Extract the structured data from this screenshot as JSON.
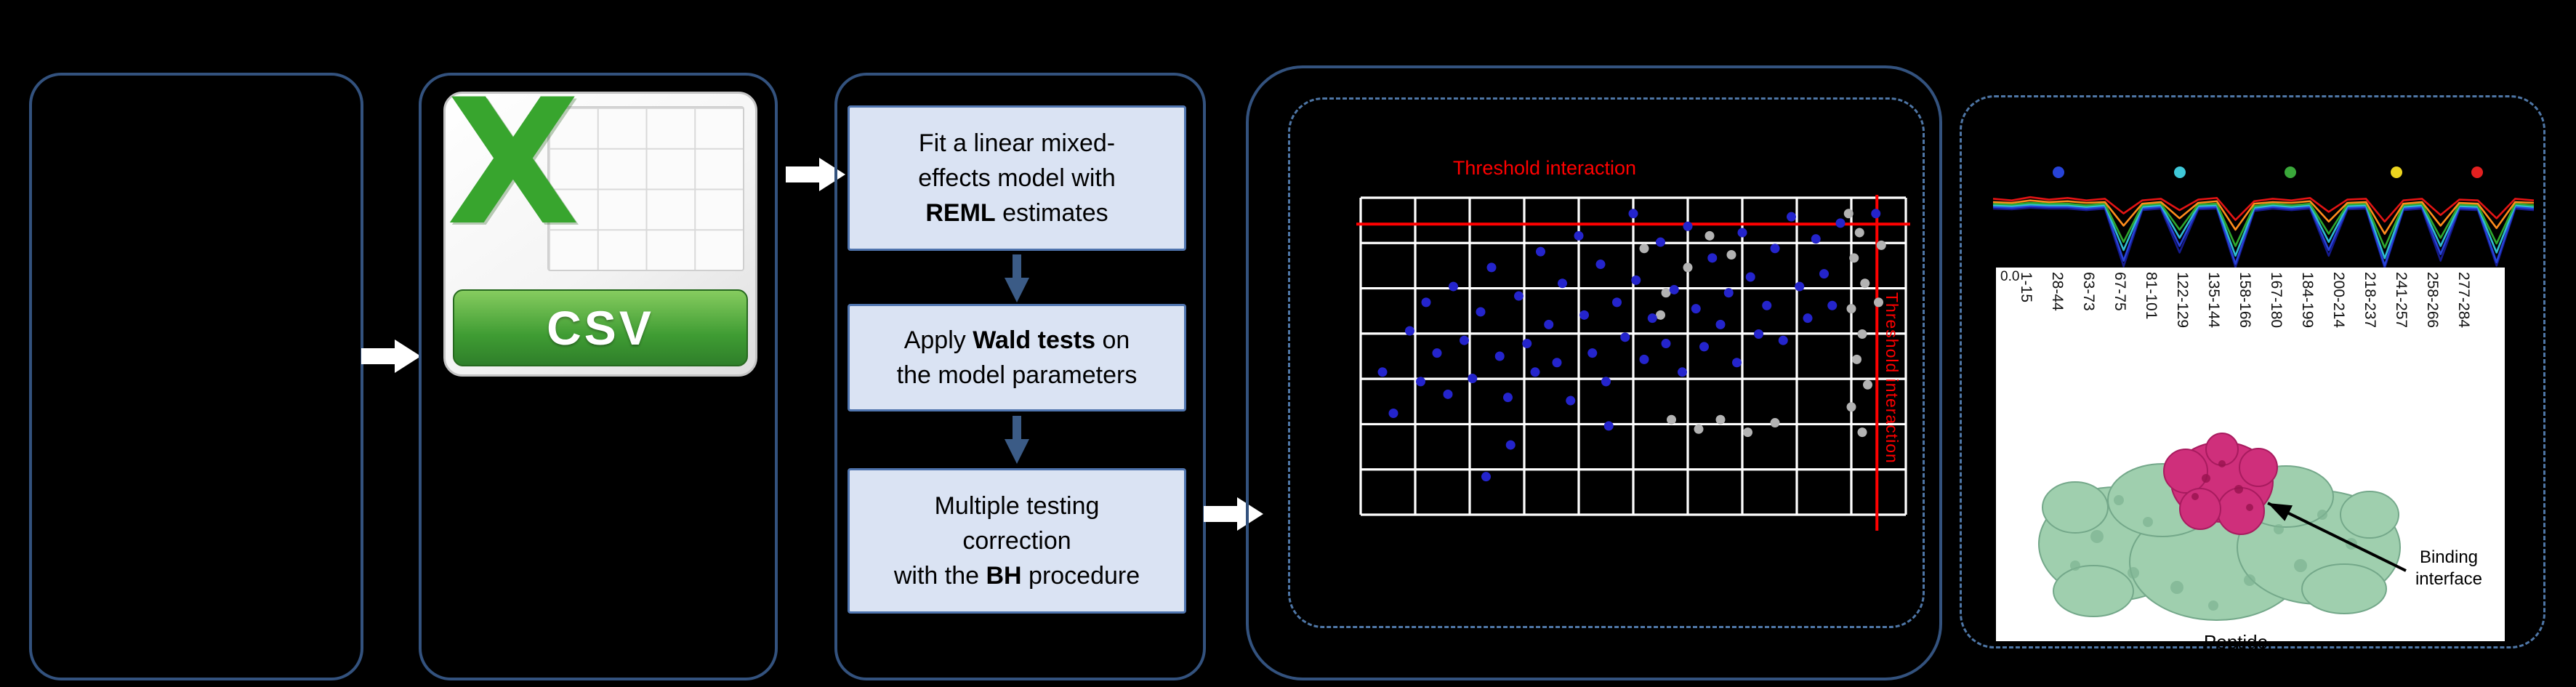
{
  "icons": {
    "flow_arrow_right": "block-arrow-right",
    "flow_arrow_down": "block-arrow-down",
    "csv_file": "excel-csv-file"
  },
  "colors": {
    "box_border": "#33527e",
    "dashed_border": "#4e76a6",
    "step_fill": "#dae3f3",
    "step_border": "#4f74ae",
    "threshold_red": "#ff0000",
    "significant_point": "#2424cc",
    "nonsignificant_point": "#b3b3b3",
    "csv_green": "#38a52e",
    "protein_green": "#9fcfae",
    "binding_magenta": "#cf2f7b"
  },
  "pipeline": {
    "csv": {
      "x_letter": "X",
      "label": "CSV"
    },
    "steps": [
      {
        "pre": "Fit a linear mixed-\neffects model with\n",
        "bold": "REML",
        "post": " estimates"
      },
      {
        "pre": "Apply ",
        "bold": "Wald tests",
        "post": " on\nthe model parameters"
      },
      {
        "pre": "Multiple testing\ncorrection\nwith the ",
        "bold": "BH",
        "post": " procedure"
      }
    ]
  },
  "volcano": {
    "title": "Threshold interaction",
    "side_label": "Threshold interaction",
    "grid": {
      "cols": 10,
      "rows": 7
    },
    "threshold_h": 0.083,
    "threshold_v": 0.947,
    "point_colors": {
      "significant": "#2424cc",
      "ns": "#b3b3b3"
    },
    "blue_points": [
      [
        0.04,
        0.55
      ],
      [
        0.06,
        0.68
      ],
      [
        0.09,
        0.42
      ],
      [
        0.11,
        0.58
      ],
      [
        0.12,
        0.33
      ],
      [
        0.14,
        0.49
      ],
      [
        0.16,
        0.62
      ],
      [
        0.17,
        0.28
      ],
      [
        0.19,
        0.45
      ],
      [
        0.205,
        0.57
      ],
      [
        0.22,
        0.36
      ],
      [
        0.23,
        0.88
      ],
      [
        0.24,
        0.22
      ],
      [
        0.255,
        0.5
      ],
      [
        0.27,
        0.63
      ],
      [
        0.275,
        0.78
      ],
      [
        0.29,
        0.31
      ],
      [
        0.305,
        0.46
      ],
      [
        0.32,
        0.55
      ],
      [
        0.33,
        0.17
      ],
      [
        0.345,
        0.4
      ],
      [
        0.36,
        0.52
      ],
      [
        0.37,
        0.27
      ],
      [
        0.385,
        0.64
      ],
      [
        0.4,
        0.12
      ],
      [
        0.41,
        0.37
      ],
      [
        0.425,
        0.49
      ],
      [
        0.44,
        0.21
      ],
      [
        0.45,
        0.58
      ],
      [
        0.455,
        0.72
      ],
      [
        0.47,
        0.33
      ],
      [
        0.485,
        0.44
      ],
      [
        0.5,
        0.05
      ],
      [
        0.505,
        0.26
      ],
      [
        0.52,
        0.51
      ],
      [
        0.535,
        0.38
      ],
      [
        0.55,
        0.14
      ],
      [
        0.56,
        0.46
      ],
      [
        0.575,
        0.29
      ],
      [
        0.59,
        0.55
      ],
      [
        0.6,
        0.09
      ],
      [
        0.615,
        0.35
      ],
      [
        0.63,
        0.47
      ],
      [
        0.645,
        0.19
      ],
      [
        0.66,
        0.4
      ],
      [
        0.675,
        0.3
      ],
      [
        0.69,
        0.52
      ],
      [
        0.7,
        0.11
      ],
      [
        0.715,
        0.25
      ],
      [
        0.73,
        0.43
      ],
      [
        0.745,
        0.34
      ],
      [
        0.76,
        0.16
      ],
      [
        0.775,
        0.45
      ],
      [
        0.79,
        0.06
      ],
      [
        0.805,
        0.28
      ],
      [
        0.82,
        0.38
      ],
      [
        0.835,
        0.13
      ],
      [
        0.85,
        0.24
      ],
      [
        0.865,
        0.34
      ],
      [
        0.88,
        0.08
      ],
      [
        0.945,
        0.05
      ]
    ],
    "gray_points": [
      [
        0.52,
        0.16
      ],
      [
        0.56,
        0.3
      ],
      [
        0.6,
        0.22
      ],
      [
        0.55,
        0.37
      ],
      [
        0.64,
        0.12
      ],
      [
        0.68,
        0.18
      ],
      [
        0.57,
        0.7
      ],
      [
        0.62,
        0.73
      ],
      [
        0.66,
        0.7
      ],
      [
        0.71,
        0.74
      ],
      [
        0.76,
        0.71
      ],
      [
        0.895,
        0.05
      ],
      [
        0.915,
        0.11
      ],
      [
        0.905,
        0.19
      ],
      [
        0.925,
        0.27
      ],
      [
        0.9,
        0.35
      ],
      [
        0.92,
        0.43
      ],
      [
        0.91,
        0.51
      ],
      [
        0.93,
        0.59
      ],
      [
        0.9,
        0.66
      ],
      [
        0.92,
        0.74
      ],
      [
        0.955,
        0.15
      ],
      [
        0.95,
        0.33
      ]
    ]
  },
  "profile": {
    "legend_dot_colors": [
      "#2743d8",
      "#3fc8d8",
      "#3aa83a",
      "#ecd51f",
      "#e32020"
    ],
    "x_labels": [
      "1-15",
      "28-44",
      "63-73",
      "67-75",
      "81-101",
      "122-129",
      "135-144",
      "158-166",
      "167-180",
      "184-199",
      "200-214",
      "218-237",
      "241-257",
      "258-266",
      "277-284"
    ],
    "xlabel": "Peptide",
    "ytick": "0.0",
    "series": [
      {
        "name": "navy",
        "color": "#151a8c",
        "values": [
          0.76,
          0.75,
          0.77,
          0.76,
          0.76,
          0.74,
          0.76,
          0.05,
          0.74,
          0.76,
          0.22,
          0.75,
          0.76,
          0.04,
          0.73,
          0.76,
          0.74,
          0.76,
          0.18,
          0.75,
          0.76,
          0.03,
          0.74,
          0.76,
          0.12,
          0.75,
          0.74,
          0.06,
          0.76,
          0.74
        ]
      },
      {
        "name": "blue",
        "color": "#2743d8",
        "values": [
          0.78,
          0.77,
          0.79,
          0.78,
          0.78,
          0.76,
          0.78,
          0.12,
          0.76,
          0.78,
          0.3,
          0.77,
          0.78,
          0.08,
          0.75,
          0.78,
          0.76,
          0.78,
          0.25,
          0.77,
          0.78,
          0.06,
          0.76,
          0.78,
          0.2,
          0.77,
          0.76,
          0.1,
          0.78,
          0.76
        ]
      },
      {
        "name": "cyan",
        "color": "#2fbcd0",
        "values": [
          0.8,
          0.79,
          0.81,
          0.8,
          0.8,
          0.78,
          0.8,
          0.25,
          0.78,
          0.8,
          0.4,
          0.79,
          0.8,
          0.18,
          0.77,
          0.8,
          0.78,
          0.8,
          0.35,
          0.79,
          0.8,
          0.15,
          0.78,
          0.8,
          0.3,
          0.79,
          0.78,
          0.22,
          0.8,
          0.78
        ]
      },
      {
        "name": "green",
        "color": "#2ea82e",
        "values": [
          0.82,
          0.81,
          0.83,
          0.82,
          0.82,
          0.8,
          0.82,
          0.35,
          0.8,
          0.82,
          0.5,
          0.81,
          0.82,
          0.3,
          0.79,
          0.82,
          0.8,
          0.82,
          0.45,
          0.81,
          0.82,
          0.28,
          0.8,
          0.82,
          0.4,
          0.81,
          0.8,
          0.33,
          0.82,
          0.8
        ]
      },
      {
        "name": "orange",
        "color": "#ff8c1c",
        "values": [
          0.84,
          0.83,
          0.86,
          0.84,
          0.85,
          0.83,
          0.84,
          0.55,
          0.82,
          0.84,
          0.64,
          0.83,
          0.85,
          0.5,
          0.82,
          0.84,
          0.83,
          0.85,
          0.6,
          0.83,
          0.84,
          0.45,
          0.82,
          0.84,
          0.55,
          0.83,
          0.82,
          0.52,
          0.84,
          0.83
        ]
      },
      {
        "name": "red",
        "color": "#e31414",
        "values": [
          0.88,
          0.86,
          0.9,
          0.87,
          0.89,
          0.86,
          0.88,
          0.7,
          0.86,
          0.88,
          0.74,
          0.87,
          0.89,
          0.62,
          0.85,
          0.88,
          0.86,
          0.89,
          0.72,
          0.87,
          0.88,
          0.6,
          0.86,
          0.88,
          0.68,
          0.87,
          0.86,
          0.64,
          0.88,
          0.86
        ]
      }
    ]
  },
  "structure": {
    "annotation": "Binding\ninterface"
  }
}
